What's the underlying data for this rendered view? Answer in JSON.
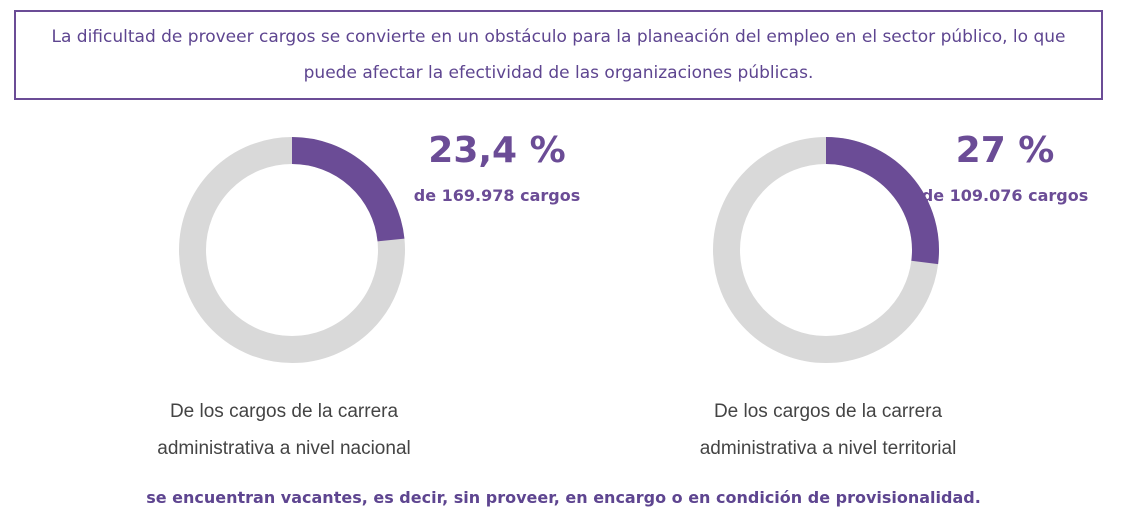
{
  "header": "La dificultad de proveer cargos se convierte en un obstáculo para la planeación del empleo en el sector público, lo que puede afectar la efectividad de las organizaciones públicas.",
  "chart_data": [
    {
      "type": "donut",
      "values": [
        23.4
      ],
      "value_labels": [
        "23,4 %"
      ],
      "subtitle": "de 169.978 cargos",
      "caption": "De los cargos de la carrera administrativa a nivel nacional",
      "color": "#6b4c96",
      "track_color": "#d9d9d9"
    },
    {
      "type": "donut",
      "values": [
        27
      ],
      "value_labels": [
        "27 %"
      ],
      "subtitle": "de 109.076 cargos",
      "caption": "De los cargos de la carrera administrativa a nivel territorial",
      "color": "#6b4c96",
      "track_color": "#d9d9d9"
    }
  ],
  "footer": "se encuentran vacantes, es decir, sin proveer, en encargo o en condición de provisionalidad."
}
